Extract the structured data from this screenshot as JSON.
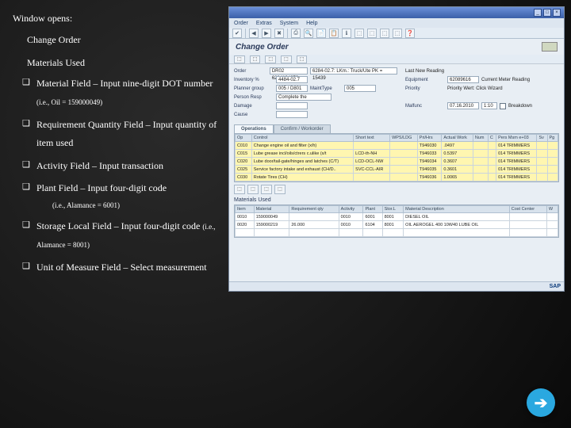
{
  "slide": {
    "heading": "Window opens:",
    "subheading": "Change Order",
    "section": "Materials Used",
    "items": [
      {
        "text": "Material Field – Input nine-digit DOT number ",
        "small": "(i.e., Oil = 159000049)"
      },
      {
        "text": "Requirement Quantity Field – Input quantity of item used"
      },
      {
        "text": "Activity Field – Input transaction"
      },
      {
        "text": "Plant Field – Input four-digit code ",
        "small": "(i.e., Alamance = 6001)",
        "smallBelow": true
      },
      {
        "text": "Storage Local Field – Input four-digit code ",
        "small": "(i.e., Alamance = 8001)"
      },
      {
        "text": "Unit of Measure Field – Select measurement"
      }
    ]
  },
  "sap": {
    "menu": [
      "Order",
      "Extras",
      "System",
      "Help"
    ],
    "toolbar_icons": [
      "✔",
      "◀",
      "▶",
      "✖",
      "⎙",
      "🔍",
      "📄",
      "📋",
      "ℹ",
      "⬚",
      "⬚",
      "⬚",
      "⬚",
      "❓"
    ],
    "page_title": "Change Order",
    "subtoolbar": [
      "⬚",
      "⬚",
      "⬚",
      "⬚",
      "⬚"
    ],
    "form": {
      "order_label": "Order",
      "order_val1": "DR02 6284134879",
      "order_val2": "6284-02.7: LKm.: Truck/Ute PK = 15439",
      "lastread_btn": "Last New Reading",
      "inventory_label": "Inventory %",
      "inventory_val": "4484-02.7",
      "equipment_label": "Equipment",
      "equipment_val": "62089616",
      "currentmeter_btn": "Current Meter Reading",
      "plannergrp_label": "Planner group",
      "plannergrp_val": "005 / D801",
      "mainttype_label": "MaintType",
      "mainttype_val": "005",
      "priority_label": "Priority",
      "priority_btn": "Priority Wert: Click Wizard",
      "personresp_label": "Person Resp",
      "personresp_val": "Complete the",
      "damage_label": "Damage",
      "damage_val": "",
      "malfunc_label": "Malfunc",
      "malfunc_val1": "07.16.2010",
      "malfunc_val2": "1:10",
      "breakdown_chk": "Breakdown",
      "cause_label": "Cause",
      "cause_val": ""
    },
    "tabs": [
      "Operations",
      "Confirm / Workorder"
    ],
    "ops": {
      "headers": [
        "Op",
        "Control",
        "Short text",
        "WPS/LDG",
        "Pri/Hrs",
        "Actual Work",
        "Num",
        "C",
        "Pers Msm e+03",
        "Sv",
        "Pg"
      ],
      "rows": [
        {
          "op": "C010",
          "ctrl": "Change engine oil and filter (x/h)",
          "shorttext": "",
          "wps": "",
          "prihrs": "T946030",
          "actual": ".0497",
          "num": "",
          "c": "",
          "pers": "014 TRIMMERS",
          "hl": true
        },
        {
          "op": "C015",
          "ctrl": "Lube grease incl/oils/ctrers c.ulike (x/t",
          "shorttext": "LCD-th-NH",
          "wps": "",
          "prihrs": "T946033",
          "actual": "0.5397",
          "num": "",
          "c": "",
          "pers": "014 TRIMMERS",
          "hl": true
        },
        {
          "op": "C020",
          "ctrl": "Lube door/tail-gate/hinges and latches (C/T)",
          "shorttext": "LCD-OCL-NW",
          "wps": "",
          "prihrs": "T946034",
          "actual": "0.3607",
          "num": "",
          "c": "",
          "pers": "014 TRIMMERS",
          "hl": true
        },
        {
          "op": "C025",
          "ctrl": "Service factory intake and exhaust (CH/D..",
          "shorttext": "SVC-CCL-AIR",
          "wps": "",
          "prihrs": "T946035",
          "actual": "0.3601",
          "num": "",
          "c": "",
          "pers": "014 TRIMMERS",
          "hl": true
        },
        {
          "op": "C030",
          "ctrl": "Rotate Tires (CH)",
          "shorttext": "",
          "wps": "",
          "prihrs": "T946036",
          "actual": "1.0065",
          "num": "",
          "c": "",
          "pers": "014 TRIMMERS",
          "hl": true
        }
      ]
    },
    "gridbar": [
      "⬚",
      "⬚",
      "⬚",
      "⬚"
    ],
    "materials_label": "Materials Used",
    "materials": {
      "headers": [
        "Item",
        "Material",
        "Requirement qty",
        "Activity",
        "Plant",
        "Stor.L",
        "Material Description",
        "Cost Center",
        "W"
      ],
      "rows": [
        {
          "item": "0010",
          "material": "159000049",
          "qty": "",
          "act": "0010",
          "plant": "6001",
          "stor": "8001",
          "desc": "DIESEL OIL",
          "cc": ""
        },
        {
          "item": "0020",
          "material": "159000219",
          "qty": "26.000",
          "act": "0010",
          "plant": "6104",
          "stor": "8001",
          "desc": "OIL AEROGEL 400 10W40 LUBE OIL",
          "cc": ""
        },
        {
          "item": "",
          "material": "",
          "qty": "",
          "act": "",
          "plant": "",
          "stor": "",
          "desc": "",
          "cc": ""
        }
      ]
    },
    "footer_brand": "SAP"
  },
  "nav": {
    "arrow": "➔"
  }
}
